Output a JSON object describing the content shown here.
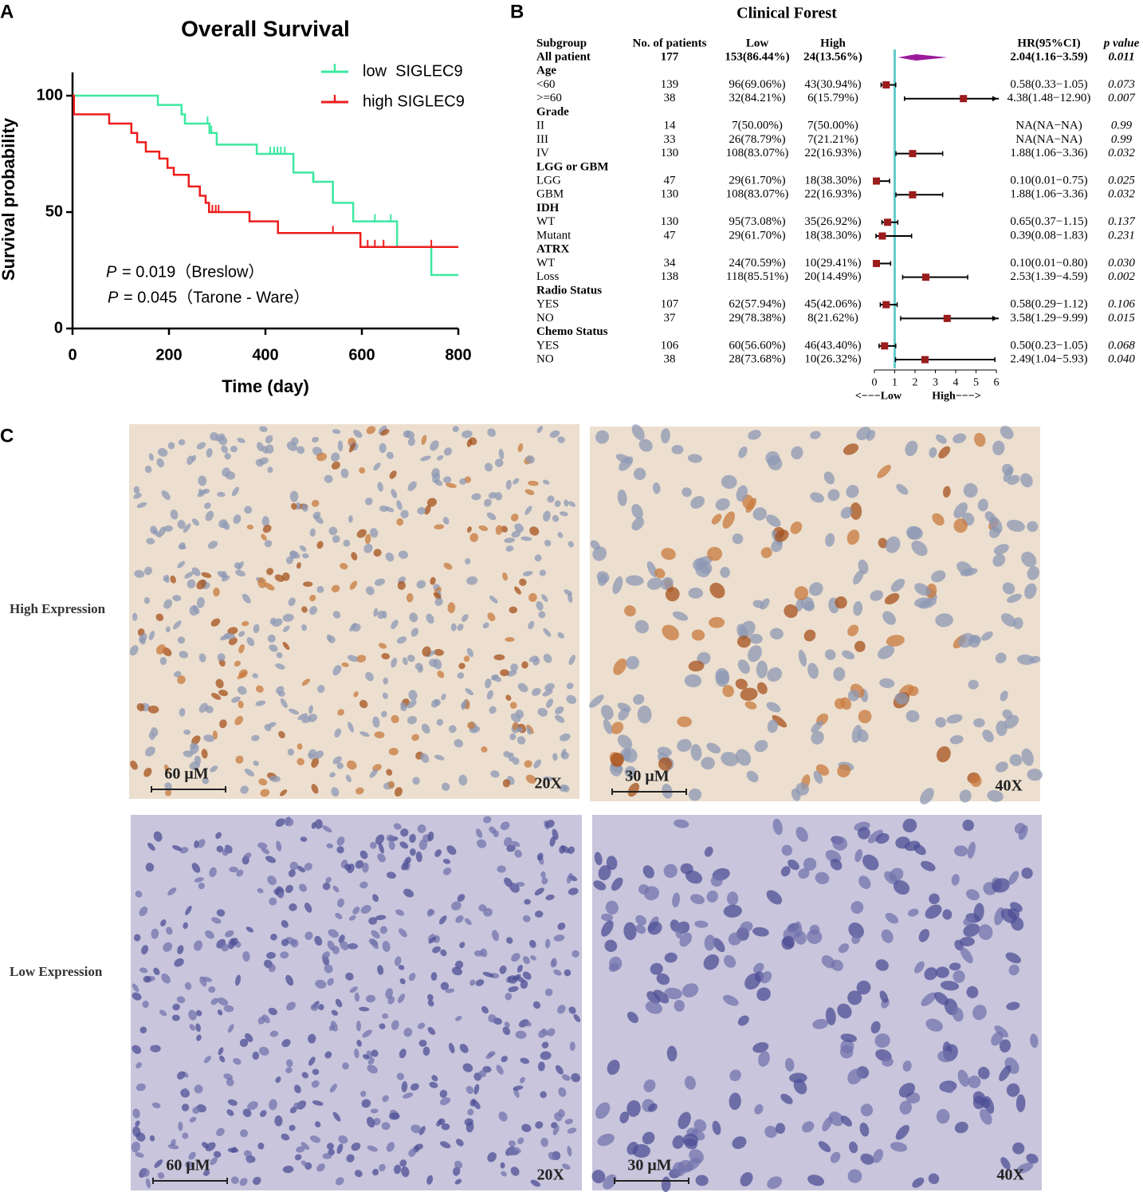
{
  "figure": {
    "panel_labels": [
      "A",
      "B",
      "C"
    ]
  },
  "chart_data": [
    {
      "type": "survival",
      "title": "Overall Survival",
      "x_label": "Time (day)",
      "y_label": "Survival probability",
      "xlim": [
        0,
        800
      ],
      "xticks": [
        0,
        200,
        400,
        600,
        800
      ],
      "ylim": [
        0,
        110
      ],
      "yticks": [
        0,
        50,
        100
      ],
      "legend": "upper right",
      "series": [
        {
          "name": "low  SIGLEC9",
          "color": "#3de8a0",
          "x": [
            0,
            177,
            226,
            233,
            284,
            299,
            382,
            458,
            499,
            540,
            582,
            673,
            744
          ],
          "values": [
            100,
            96,
            92,
            88,
            84,
            79,
            75,
            67,
            63,
            54,
            46,
            35,
            23
          ],
          "censor_x": [
            280,
            288,
            410,
            418,
            425,
            432,
            440,
            500,
            627,
            660
          ],
          "censor_values": [
            88,
            84,
            75,
            75,
            75,
            75,
            75,
            63,
            46,
            46
          ]
        },
        {
          "name": "high SIGLEC9",
          "color": "#ee1c1c",
          "x": [
            0,
            3,
            76,
            122,
            134,
            152,
            180,
            197,
            210,
            241,
            264,
            276,
            283,
            367,
            426,
            597
          ],
          "values": [
            100,
            92,
            88,
            84,
            80,
            76,
            73,
            69,
            66,
            61,
            57,
            54,
            50,
            46,
            41,
            35
          ],
          "censor_x": [
            290,
            297,
            303,
            540,
            612,
            627,
            645,
            744
          ],
          "censor_values": [
            50,
            50,
            50,
            41,
            35,
            35,
            35,
            35
          ]
        }
      ],
      "annotations": [
        {
          "symbol": "P",
          "text": "= 0.019（Breslow）"
        },
        {
          "symbol": "P",
          "text": "= 0.045（Tarone - Ware）"
        }
      ]
    },
    {
      "type": "forest",
      "title": "Clinical Forest",
      "columns": [
        "Subgroup",
        "No. of patients",
        "Low",
        "High",
        "HR(95%CI)",
        "p value"
      ],
      "xlim": [
        0,
        6
      ],
      "xticks": [
        0,
        1,
        2,
        3,
        4,
        5,
        6
      ],
      "reference": 1,
      "x_labels": [
        "<−−−Low",
        "High−−−>"
      ],
      "marker_color": "#9b1c1c",
      "summary_color": "#9b1b9b",
      "reference_color": "#66cccc",
      "rows": [
        {
          "label": "All patient",
          "patients": 177,
          "low": "153(86.44%)",
          "high": "24(13.56%)",
          "hr": 2.04,
          "lower": 1.16,
          "upper": 3.59,
          "hr_label": "2.04(1.16−3.59)",
          "p": "0.011",
          "summary": true
        },
        {
          "label": "Age",
          "header": true
        },
        {
          "label": "<60",
          "patients": 139,
          "low": "96(69.06%)",
          "high": "43(30.94%)",
          "hr": 0.58,
          "lower": 0.33,
          "upper": 1.05,
          "hr_label": "0.58(0.33−1.05)",
          "p": "0.073"
        },
        {
          "label": ">=60",
          "patients": 38,
          "low": "32(84.21%)",
          "high": "6(15.79%)",
          "hr": 4.38,
          "lower": 1.48,
          "upper": 12.9,
          "hr_label": "4.38(1.48−12.90)",
          "p": "0.007"
        },
        {
          "label": "Grade",
          "header": true
        },
        {
          "label": "II",
          "patients": 14,
          "low": "7(50.00%)",
          "high": "7(50.00%)",
          "hr": null,
          "lower": null,
          "upper": null,
          "hr_label": "NA(NA−NA)",
          "p": "0.99"
        },
        {
          "label": "III",
          "patients": 33,
          "low": "26(78.79%)",
          "high": "7(21.21%)",
          "hr": null,
          "lower": null,
          "upper": null,
          "hr_label": "NA(NA−NA)",
          "p": "0.99"
        },
        {
          "label": "IV",
          "patients": 130,
          "low": "108(83.07%)",
          "high": "22(16.93%)",
          "hr": 1.88,
          "lower": 1.06,
          "upper": 3.36,
          "hr_label": "1.88(1.06−3.36)",
          "p": "0.032"
        },
        {
          "label": "LGG or GBM",
          "header": true
        },
        {
          "label": "LGG",
          "patients": 47,
          "low": "29(61.70%)",
          "high": "18(38.30%)",
          "hr": 0.1,
          "lower": 0.01,
          "upper": 0.75,
          "hr_label": "0.10(0.01−0.75)",
          "p": "0.025"
        },
        {
          "label": "GBM",
          "patients": 130,
          "low": "108(83.07%)",
          "high": "22(16.93%)",
          "hr": 1.88,
          "lower": 1.06,
          "upper": 3.36,
          "hr_label": "1.88(1.06−3.36)",
          "p": "0.032"
        },
        {
          "label": "IDH",
          "header": true
        },
        {
          "label": "WT",
          "patients": 130,
          "low": "95(73.08%)",
          "high": "35(26.92%)",
          "hr": 0.65,
          "lower": 0.37,
          "upper": 1.15,
          "hr_label": "0.65(0.37−1.15)",
          "p": "0.137"
        },
        {
          "label": "Mutant",
          "patients": 47,
          "low": "29(61.70%)",
          "high": "18(38.30%)",
          "hr": 0.39,
          "lower": 0.08,
          "upper": 1.83,
          "hr_label": "0.39(0.08−1.83)",
          "p": "0.231"
        },
        {
          "label": "ATRX",
          "header": true
        },
        {
          "label": "WT",
          "patients": 34,
          "low": "24(70.59%)",
          "high": "10(29.41%)",
          "hr": 0.1,
          "lower": 0.01,
          "upper": 0.8,
          "hr_label": "0.10(0.01−0.80)",
          "p": "0.030"
        },
        {
          "label": "Loss",
          "patients": 138,
          "low": "118(85.51%)",
          "high": "20(14.49%)",
          "hr": 2.53,
          "lower": 1.39,
          "upper": 4.59,
          "hr_label": "2.53(1.39−4.59)",
          "p": "0.002"
        },
        {
          "label": "Radio Status",
          "header": true
        },
        {
          "label": "YES",
          "patients": 107,
          "low": "62(57.94%)",
          "high": "45(42.06%)",
          "hr": 0.58,
          "lower": 0.29,
          "upper": 1.12,
          "hr_label": "0.58(0.29−1.12)",
          "p": "0.106"
        },
        {
          "label": "NO",
          "patients": 37,
          "low": "29(78.38%)",
          "high": "8(21.62%)",
          "hr": 3.58,
          "lower": 1.29,
          "upper": 9.99,
          "hr_label": "3.58(1.29−9.99)",
          "p": "0.015"
        },
        {
          "label": "Chemo Status",
          "header": true
        },
        {
          "label": "YES",
          "patients": 106,
          "low": "60(56.60%)",
          "high": "46(43.40%)",
          "hr": 0.5,
          "lower": 0.23,
          "upper": 1.05,
          "hr_label": "0.50(0.23−1.05)",
          "p": "0.068"
        },
        {
          "label": "NO",
          "patients": 38,
          "low": "28(73.68%)",
          "high": "10(26.32%)",
          "hr": 2.49,
          "lower": 1.04,
          "upper": 5.93,
          "hr_label": "2.49(1.04−5.93)",
          "p": "0.040"
        }
      ]
    }
  ],
  "ihc": {
    "row_labels": [
      "High Expression",
      "Low Expression"
    ],
    "panels": [
      {
        "scale_label": "60 μM",
        "magnification": "20X"
      },
      {
        "scale_label": "30 μM",
        "magnification": "40X"
      },
      {
        "scale_label": "60 μM",
        "magnification": "20X"
      },
      {
        "scale_label": "30 μM",
        "magnification": "40X"
      }
    ]
  }
}
